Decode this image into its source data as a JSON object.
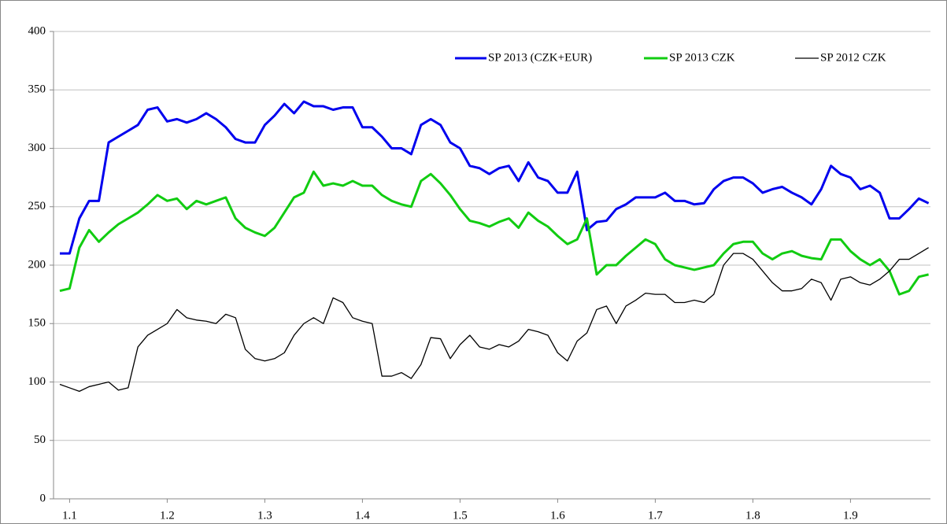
{
  "chart_data": {
    "type": "line",
    "categories": [
      null,
      "1.1",
      null,
      null,
      null,
      null,
      null,
      null,
      null,
      null,
      null,
      "1.2",
      null,
      null,
      null,
      null,
      null,
      null,
      null,
      null,
      null,
      "1.3",
      null,
      null,
      null,
      null,
      null,
      null,
      null,
      null,
      null,
      "1.4",
      null,
      null,
      null,
      null,
      null,
      null,
      null,
      null,
      null,
      "1.5",
      null,
      null,
      null,
      null,
      null,
      null,
      null,
      null,
      null,
      "1.6",
      null,
      null,
      null,
      null,
      null,
      null,
      null,
      null,
      null,
      "1.7",
      null,
      null,
      null,
      null,
      null,
      null,
      null,
      null,
      null,
      "1.8",
      null,
      null,
      null,
      null,
      null,
      null,
      null,
      null,
      null,
      "1.9",
      null,
      null,
      null,
      null,
      null,
      null,
      null,
      null
    ],
    "series": [
      {
        "name": "SP 2013 (CZK+EUR)",
        "color": "#0000ee",
        "values": [
          210,
          210,
          240,
          255,
          255,
          305,
          310,
          315,
          320,
          333,
          335,
          323,
          325,
          322,
          325,
          330,
          325,
          318,
          308,
          305,
          305,
          320,
          328,
          338,
          330,
          340,
          336,
          336,
          333,
          335,
          335,
          318,
          318,
          310,
          300,
          300,
          295,
          320,
          325,
          320,
          305,
          300,
          285,
          283,
          278,
          283,
          285,
          272,
          288,
          275,
          272,
          262,
          262,
          280,
          230,
          237,
          238,
          248,
          252,
          258,
          258,
          258,
          262,
          255,
          255,
          252,
          253,
          265,
          272,
          275,
          275,
          270,
          262,
          265,
          267,
          262,
          258,
          252,
          265,
          285,
          278,
          275,
          265,
          268,
          262,
          240,
          240,
          248,
          257,
          253
        ]
      },
      {
        "name": "SP 2013 CZK",
        "color": "#11cc11",
        "values": [
          178,
          180,
          215,
          230,
          220,
          228,
          235,
          240,
          245,
          252,
          260,
          255,
          257,
          248,
          255,
          252,
          255,
          258,
          240,
          232,
          228,
          225,
          232,
          245,
          258,
          262,
          280,
          268,
          270,
          268,
          272,
          268,
          268,
          260,
          255,
          252,
          250,
          272,
          278,
          270,
          260,
          248,
          238,
          236,
          233,
          237,
          240,
          232,
          245,
          238,
          233,
          225,
          218,
          222,
          240,
          192,
          200,
          200,
          208,
          215,
          222,
          218,
          205,
          200,
          198,
          196,
          198,
          200,
          210,
          218,
          220,
          220,
          210,
          205,
          210,
          212,
          208,
          206,
          205,
          222,
          222,
          212,
          205,
          200,
          205,
          195,
          175,
          178,
          190,
          192
        ]
      },
      {
        "name": "SP 2012 CZK",
        "color": "#000000",
        "values": [
          98,
          95,
          92,
          96,
          98,
          100,
          93,
          95,
          130,
          140,
          145,
          150,
          162,
          155,
          153,
          152,
          150,
          158,
          155,
          128,
          120,
          118,
          120,
          125,
          140,
          150,
          155,
          150,
          172,
          168,
          155,
          152,
          150,
          105,
          105,
          108,
          103,
          115,
          138,
          137,
          120,
          132,
          140,
          130,
          128,
          132,
          130,
          135,
          145,
          143,
          140,
          125,
          118,
          135,
          142,
          162,
          165,
          150,
          165,
          170,
          176,
          175,
          175,
          168,
          168,
          170,
          168,
          175,
          200,
          210,
          210,
          205,
          195,
          185,
          178,
          178,
          180,
          188,
          185,
          170,
          188,
          190,
          185,
          183,
          188,
          195,
          205,
          205,
          210,
          215
        ]
      }
    ],
    "ylim": [
      0,
      400
    ],
    "yticks": [
      0,
      50,
      100,
      150,
      200,
      250,
      300,
      350,
      400
    ],
    "grid": true,
    "legend": "upper-right"
  }
}
